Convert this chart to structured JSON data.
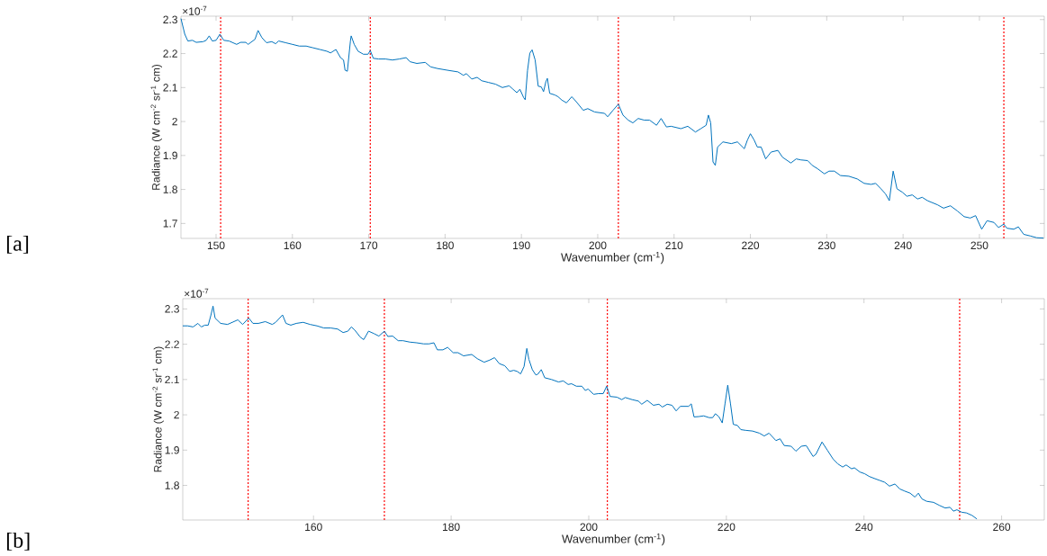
{
  "chart_data": [
    {
      "type": "line",
      "xlabel": "Wavenumber (cm$^{-1}$)",
      "ylabel": "Radiance (W cm$^{-2}$ sr$^{-1}$ cm)",
      "color": "#0072bd",
      "annotations": [
        "[a]",
        "×10$^{-7}$"
      ],
      "xlim": [
        145.4,
        258.5
      ],
      "ylim": [
        1.656,
        2.31
      ],
      "xticks": [
        150,
        160,
        170,
        180,
        190,
        200,
        210,
        220,
        230,
        240,
        250
      ],
      "yticks": [
        1.7,
        1.8,
        1.9,
        2,
        2.1,
        2.2,
        2.3
      ],
      "ref_lines": [
        {
          "axis": "x",
          "value": 150.6,
          "color": "#ff0000",
          "line_style": "dotted"
        },
        {
          "axis": "x",
          "value": 170.2,
          "color": "#ff0000",
          "line_style": "dotted"
        },
        {
          "axis": "x",
          "value": 202.7,
          "color": "#ff0000",
          "line_style": "dotted"
        },
        {
          "axis": "x",
          "value": 253.2,
          "color": "#ff0000",
          "line_style": "dotted"
        }
      ],
      "x": [
        145.4,
        145.9,
        146.3,
        146.9,
        147.4,
        148.3,
        148.7,
        149.1,
        149.5,
        150.0,
        150.5,
        151.0,
        151.7,
        152.7,
        153.2,
        153.9,
        154.2,
        155.1,
        155.5,
        156.0,
        156.6,
        157.3,
        157.8,
        158.2,
        159.1,
        160.0,
        160.9,
        161.8,
        162.7,
        163.6,
        164.5,
        165.0,
        165.7,
        166.3,
        166.7,
        166.9,
        167.2,
        167.6,
        167.7,
        168.1,
        168.6,
        169.3,
        169.9,
        170.2,
        170.6,
        171.3,
        172.2,
        173.1,
        174.0,
        174.9,
        175.4,
        176.3,
        177.4,
        178.1,
        179.0,
        180.3,
        181.7,
        182.4,
        182.8,
        183.5,
        184.2,
        184.8,
        185.7,
        186.6,
        187.5,
        188.4,
        188.9,
        189.4,
        189.8,
        190.3,
        190.5,
        190.8,
        191.1,
        191.4,
        191.8,
        192.2,
        192.6,
        192.9,
        193.2,
        193.4,
        193.7,
        194.4,
        194.8,
        195.3,
        195.9,
        196.6,
        197.2,
        198.1,
        198.7,
        199.6,
        200.9,
        201.3,
        202.0,
        202.7,
        203.3,
        204.0,
        204.6,
        205.3,
        206.1,
        206.8,
        207.7,
        208.3,
        209.0,
        209.6,
        210.9,
        211.8,
        212.8,
        213.5,
        214.2,
        214.5,
        214.8,
        215.1,
        215.4,
        215.7,
        216.4,
        217.5,
        218.3,
        219.2,
        219.6,
        220.0,
        220.5,
        220.9,
        221.4,
        222.0,
        222.7,
        223.6,
        224.2,
        225.3,
        226.0,
        226.6,
        227.5,
        228.1,
        228.8,
        229.7,
        230.3,
        231.0,
        231.8,
        232.9,
        234.0,
        234.9,
        235.8,
        236.4,
        237.1,
        237.7,
        238.2,
        238.7,
        239.2,
        239.9,
        240.5,
        241.2,
        241.9,
        242.5,
        243.2,
        244.5,
        245.3,
        246.2,
        247.1,
        248.0,
        248.8,
        249.5,
        250.3,
        251.0,
        251.9,
        252.5,
        253.2,
        253.6,
        254.5,
        255.1,
        255.8,
        256.7,
        257.5,
        258.4
      ],
      "values": [
        2.303,
        2.257,
        2.237,
        2.239,
        2.233,
        2.235,
        2.239,
        2.252,
        2.237,
        2.239,
        2.257,
        2.239,
        2.237,
        2.227,
        2.233,
        2.233,
        2.227,
        2.242,
        2.268,
        2.247,
        2.232,
        2.235,
        2.229,
        2.237,
        2.232,
        2.227,
        2.222,
        2.222,
        2.217,
        2.212,
        2.207,
        2.202,
        2.212,
        2.188,
        2.181,
        2.151,
        2.148,
        2.237,
        2.252,
        2.227,
        2.207,
        2.198,
        2.198,
        2.209,
        2.186,
        2.184,
        2.184,
        2.181,
        2.184,
        2.188,
        2.176,
        2.171,
        2.174,
        2.161,
        2.156,
        2.151,
        2.146,
        2.136,
        2.141,
        2.125,
        2.13,
        2.12,
        2.115,
        2.11,
        2.1,
        2.105,
        2.095,
        2.085,
        2.095,
        2.07,
        2.064,
        2.15,
        2.201,
        2.211,
        2.181,
        2.104,
        2.102,
        2.088,
        2.117,
        2.127,
        2.083,
        2.078,
        2.073,
        2.063,
        2.055,
        2.073,
        2.058,
        2.033,
        2.038,
        2.028,
        2.024,
        2.014,
        2.033,
        2.051,
        2.019,
        2.004,
        1.996,
        2.009,
        2.004,
        2.004,
        1.989,
        2.009,
        1.984,
        1.986,
        1.979,
        1.986,
        1.969,
        1.979,
        1.989,
        2.019,
        1.996,
        1.881,
        1.871,
        1.925,
        1.94,
        1.935,
        1.94,
        1.92,
        1.945,
        1.964,
        1.945,
        1.925,
        1.925,
        1.89,
        1.91,
        1.915,
        1.895,
        1.878,
        1.89,
        1.887,
        1.885,
        1.871,
        1.861,
        1.846,
        1.854,
        1.854,
        1.841,
        1.839,
        1.831,
        1.818,
        1.815,
        1.818,
        1.802,
        1.787,
        1.767,
        1.854,
        1.802,
        1.792,
        1.78,
        1.784,
        1.772,
        1.777,
        1.767,
        1.755,
        1.745,
        1.752,
        1.737,
        1.72,
        1.716,
        1.723,
        1.683,
        1.708,
        1.703,
        1.688,
        1.698,
        1.686,
        1.683,
        1.69,
        1.668,
        1.663,
        1.658,
        1.657
      ]
    },
    {
      "type": "line",
      "xlabel": "Wavenumber (cm$^{-1}$)",
      "ylabel": "Radiance (W cm$^{-2}$ sr$^{-1}$ cm)",
      "color": "#0072bd",
      "annotations": [
        "[b]",
        "×10$^{-7}$"
      ],
      "xlim": [
        141.0,
        266.2
      ],
      "ylim": [
        1.702,
        2.329
      ],
      "xticks": [
        160,
        180,
        200,
        220,
        240,
        260
      ],
      "yticks": [
        1.8,
        1.9,
        2,
        2.1,
        2.2,
        2.3
      ],
      "ref_lines": [
        {
          "axis": "x",
          "value": 150.5,
          "color": "#ff0000",
          "line_style": "dotted"
        },
        {
          "axis": "x",
          "value": 170.3,
          "color": "#ff0000",
          "line_style": "dotted"
        },
        {
          "axis": "x",
          "value": 202.7,
          "color": "#ff0000",
          "line_style": "dotted"
        },
        {
          "axis": "x",
          "value": 253.9,
          "color": "#ff0000",
          "line_style": "dotted"
        }
      ],
      "x": [
        141.0,
        141.7,
        142.5,
        143.2,
        143.7,
        144.2,
        144.7,
        145.1,
        145.4,
        145.7,
        146.5,
        147.5,
        148.2,
        149.0,
        149.7,
        150.6,
        151.2,
        152.0,
        153.0,
        154.0,
        154.5,
        155.5,
        156.0,
        156.7,
        157.5,
        158.5,
        159.5,
        160.5,
        161.5,
        162.5,
        163.5,
        164.3,
        165.0,
        165.5,
        166.0,
        166.8,
        167.3,
        168.0,
        168.8,
        169.5,
        170.3,
        170.8,
        171.5,
        172.3,
        173.0,
        174.0,
        175.0,
        176.0,
        176.8,
        177.5,
        178.0,
        178.8,
        179.5,
        180.3,
        181.0,
        181.8,
        183.0,
        183.8,
        184.8,
        185.6,
        186.3,
        187.0,
        187.8,
        188.5,
        189.1,
        189.6,
        190.1,
        190.6,
        191.0,
        191.3,
        191.8,
        192.3,
        192.6,
        193.1,
        193.6,
        194.6,
        195.6,
        196.3,
        197.0,
        197.5,
        198.2,
        199.0,
        199.5,
        199.9,
        200.7,
        201.4,
        202.1,
        202.6,
        203.1,
        204.1,
        204.8,
        205.3,
        206.3,
        207.2,
        207.7,
        208.5,
        209.4,
        210.2,
        210.7,
        211.4,
        212.1,
        212.7,
        213.3,
        214.5,
        214.9,
        215.3,
        216.0,
        216.7,
        217.5,
        218.0,
        218.4,
        218.9,
        219.4,
        219.8,
        220.2,
        220.6,
        221.0,
        221.6,
        222.1,
        222.8,
        223.8,
        224.8,
        225.5,
        226.2,
        227.2,
        227.8,
        228.4,
        229.4,
        230.1,
        230.9,
        231.6,
        232.6,
        233.0,
        233.9,
        234.7,
        235.5,
        236.2,
        236.9,
        237.4,
        238.2,
        238.6,
        239.4,
        240.1,
        240.8,
        241.6,
        242.3,
        243.0,
        243.7,
        244.5,
        245.2,
        245.9,
        246.7,
        247.4,
        247.9,
        248.4,
        249.1,
        250.1,
        251.0,
        251.8,
        252.5,
        253.0,
        253.5,
        254.2,
        254.9,
        255.7,
        256.4
      ],
      "values": [
        2.252,
        2.252,
        2.249,
        2.259,
        2.249,
        2.254,
        2.254,
        2.283,
        2.308,
        2.274,
        2.259,
        2.256,
        2.262,
        2.269,
        2.256,
        2.274,
        2.259,
        2.259,
        2.264,
        2.256,
        2.262,
        2.283,
        2.259,
        2.254,
        2.259,
        2.262,
        2.256,
        2.252,
        2.246,
        2.246,
        2.243,
        2.233,
        2.237,
        2.249,
        2.24,
        2.22,
        2.213,
        2.237,
        2.23,
        2.223,
        2.237,
        2.222,
        2.223,
        2.21,
        2.21,
        2.206,
        2.204,
        2.201,
        2.201,
        2.204,
        2.184,
        2.184,
        2.191,
        2.176,
        2.176,
        2.167,
        2.171,
        2.159,
        2.149,
        2.155,
        2.162,
        2.145,
        2.139,
        2.123,
        2.126,
        2.123,
        2.116,
        2.137,
        2.188,
        2.157,
        2.128,
        2.113,
        2.115,
        2.128,
        2.105,
        2.1,
        2.093,
        2.096,
        2.086,
        2.088,
        2.081,
        2.081,
        2.069,
        2.073,
        2.058,
        2.06,
        2.06,
        2.081,
        2.052,
        2.05,
        2.043,
        2.049,
        2.043,
        2.039,
        2.03,
        2.041,
        2.027,
        2.03,
        2.022,
        2.03,
        2.027,
        2.011,
        2.024,
        2.024,
        2.031,
        1.994,
        1.995,
        1.997,
        1.992,
        1.992,
        2.003,
        1.995,
        1.977,
        2.031,
        2.084,
        2.031,
        1.973,
        1.97,
        1.958,
        1.956,
        1.954,
        1.948,
        1.94,
        1.948,
        1.927,
        1.932,
        1.913,
        1.911,
        1.897,
        1.911,
        1.913,
        1.882,
        1.888,
        1.923,
        1.899,
        1.875,
        1.861,
        1.852,
        1.858,
        1.847,
        1.85,
        1.838,
        1.833,
        1.825,
        1.819,
        1.814,
        1.809,
        1.798,
        1.804,
        1.79,
        1.784,
        1.778,
        1.767,
        1.778,
        1.762,
        1.755,
        1.752,
        1.743,
        1.736,
        1.738,
        1.727,
        1.731,
        1.724,
        1.722,
        1.715,
        1.705
      ]
    }
  ]
}
